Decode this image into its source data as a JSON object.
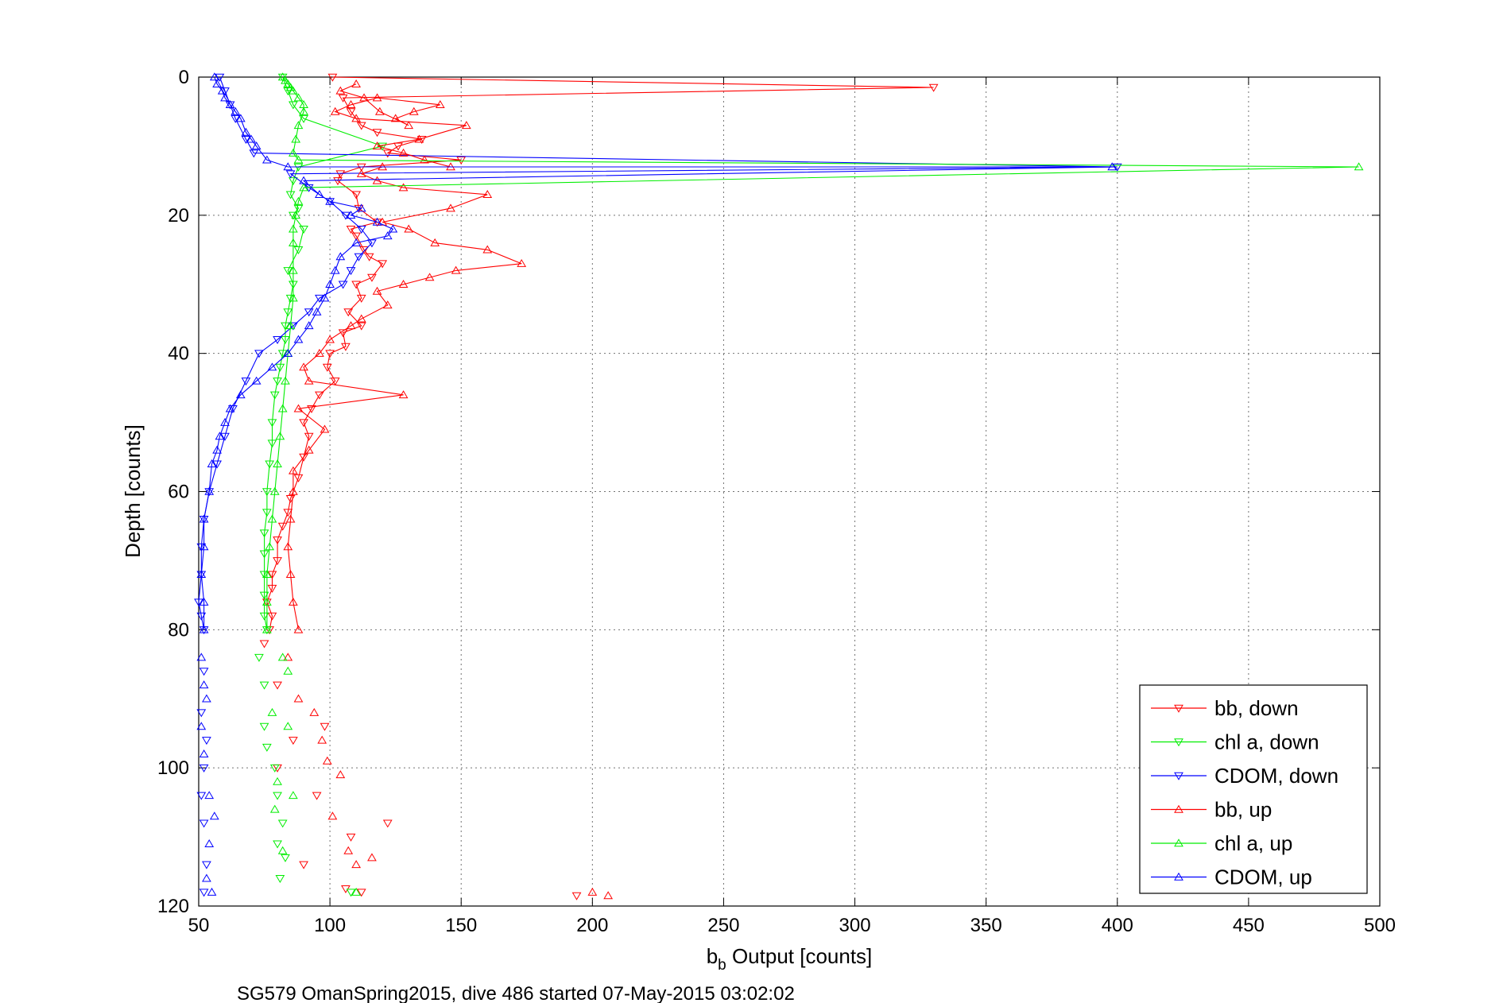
{
  "chart_data": {
    "type": "line",
    "xlabel_main": "b",
    "xlabel_sub": "b",
    "xlabel_rest": " Output [counts]",
    "ylabel": "Depth [counts]",
    "caption": "SG579 OmanSpring2015, dive 486 started 07-May-2015 03:02:02",
    "xlim": [
      50,
      500
    ],
    "ylim": [
      0,
      120
    ],
    "y_reversed": true,
    "xticks": [
      50,
      100,
      150,
      200,
      250,
      300,
      350,
      400,
      450,
      500
    ],
    "yticks": [
      0,
      20,
      40,
      60,
      80,
      100,
      120
    ],
    "grid": true,
    "legend_position": "bottom-right",
    "series": [
      {
        "name": "bb, down",
        "color": "#ff0000",
        "marker": "triangle-down",
        "x": [
          101,
          330,
          105,
          108,
          112,
          118,
          135,
          126,
          122,
          150,
          112,
          104,
          103,
          110,
          111,
          118,
          108,
          110,
          113,
          115,
          120,
          116,
          110,
          112,
          107,
          112,
          105,
          106,
          100,
          99,
          102,
          96,
          93,
          90,
          92,
          90,
          88,
          85,
          84,
          82,
          80,
          80,
          78,
          78,
          76,
          78,
          77
        ],
        "y": [
          0,
          1.5,
          3,
          5,
          7,
          8,
          9,
          10,
          11,
          12,
          13,
          14,
          15,
          17,
          19,
          21,
          22,
          23,
          25,
          26,
          27,
          29,
          30,
          32,
          34,
          36,
          37,
          39,
          40,
          42,
          44,
          46,
          48,
          50,
          52,
          55,
          58,
          61,
          63,
          65,
          67,
          70,
          72,
          74,
          76,
          78,
          80
        ],
        "x_unconnected": [
          75,
          80,
          98,
          86,
          80,
          95,
          122,
          108,
          90,
          194,
          106,
          112
        ],
        "y_unconnected": [
          82,
          88,
          94,
          96,
          100,
          104,
          108,
          110,
          114,
          118.5,
          117.5,
          118
        ]
      },
      {
        "name": "chl a, down",
        "color": "#00ee00",
        "marker": "triangle-down",
        "x": [
          82,
          84,
          86,
          90,
          120,
          88,
          86,
          85,
          88,
          86,
          90,
          88,
          84,
          86,
          85,
          84,
          83,
          83,
          82,
          81,
          80,
          79,
          78,
          78,
          77,
          76,
          76,
          75,
          75,
          75,
          75,
          75,
          76
        ],
        "y": [
          0,
          2,
          4,
          6,
          10,
          13,
          15,
          17,
          19,
          20,
          22,
          25,
          28,
          30,
          32,
          34,
          36,
          38,
          40,
          42,
          44,
          46,
          50,
          53,
          56,
          60,
          63,
          66,
          69,
          72,
          75,
          78,
          80
        ],
        "x_unconnected": [
          73,
          75,
          75,
          76,
          79,
          80,
          82,
          80,
          83,
          81,
          108
        ],
        "y_unconnected": [
          84,
          88,
          94,
          97,
          100,
          104,
          108,
          111,
          113,
          116,
          118
        ]
      },
      {
        "name": "CDOM, down",
        "color": "#0000ff",
        "marker": "triangle-down",
        "x": [
          58,
          60,
          62,
          64,
          68,
          71,
          400,
          85,
          92,
          100,
          106,
          112,
          116,
          111,
          108,
          105,
          96,
          92,
          86,
          80,
          73,
          68,
          63,
          60,
          57,
          54,
          52,
          51,
          51,
          50,
          51,
          52
        ],
        "y": [
          0,
          2,
          4,
          6,
          9,
          11,
          13,
          14,
          16,
          18,
          20,
          22,
          24,
          26,
          28,
          30,
          32,
          34,
          36,
          38,
          40,
          44,
          48,
          52,
          56,
          60,
          64,
          68,
          72,
          76,
          78,
          80
        ],
        "x_unconnected": [
          52,
          51,
          53,
          52,
          51,
          52,
          53,
          52
        ],
        "y_unconnected": [
          86,
          92,
          96,
          100,
          104,
          108,
          114,
          118
        ]
      },
      {
        "name": "bb, up",
        "color": "#ff0000",
        "marker": "triangle-up",
        "x": [
          88,
          86,
          85,
          84,
          85,
          86,
          86,
          92,
          98,
          88,
          128,
          92,
          90,
          96,
          100,
          108,
          112,
          122,
          118,
          128,
          138,
          148,
          173,
          160,
          140,
          130,
          120,
          146,
          160,
          128,
          118,
          112,
          120,
          146,
          136,
          128,
          118,
          134,
          152,
          110,
          102,
          108,
          118,
          142,
          132,
          125,
          130,
          119,
          113,
          104,
          110
        ],
        "y": [
          80,
          76,
          72,
          68,
          64,
          60,
          57,
          54,
          51,
          48,
          46,
          44,
          42,
          40,
          38,
          36,
          35,
          33,
          31,
          30,
          29,
          28,
          27,
          25,
          24,
          22,
          21,
          19,
          17,
          16,
          15,
          14,
          13,
          13,
          12,
          11,
          10,
          9,
          7,
          6,
          5,
          4,
          3,
          4,
          5,
          6,
          7,
          5,
          3,
          2,
          1
        ],
        "x_unconnected": [
          84,
          88,
          94,
          97,
          99,
          104,
          101,
          107,
          110,
          116,
          200,
          206
        ],
        "y_unconnected": [
          84,
          90,
          92,
          96,
          99,
          101,
          107,
          112,
          114,
          113,
          118,
          118.5
        ]
      },
      {
        "name": "chl a, up",
        "color": "#00ee00",
        "marker": "triangle-up",
        "x": [
          76,
          76,
          76,
          77,
          78,
          79,
          80,
          81,
          82,
          83,
          84,
          85,
          86,
          86,
          86,
          86,
          87,
          88,
          90,
          492,
          88,
          86,
          87,
          88,
          90,
          90,
          88,
          86,
          85,
          84,
          83,
          82
        ],
        "y": [
          80,
          76,
          72,
          68,
          64,
          60,
          56,
          52,
          48,
          44,
          40,
          36,
          32,
          28,
          24,
          22,
          20,
          18,
          16,
          13,
          12,
          11,
          9,
          7,
          5,
          4,
          3,
          2,
          1.5,
          1,
          0.5,
          0
        ],
        "x_unconnected": [
          82,
          84,
          78,
          84,
          80,
          86,
          79,
          82,
          110
        ],
        "y_unconnected": [
          84,
          86,
          92,
          94,
          102,
          104,
          106,
          112,
          118
        ]
      },
      {
        "name": "CDOM, up",
        "color": "#0000ff",
        "marker": "triangle-up",
        "x": [
          52,
          52,
          51,
          52,
          52,
          54,
          55,
          57,
          58,
          60,
          62,
          66,
          72,
          78,
          84,
          88,
          92,
          95,
          98,
          100,
          102,
          104,
          110,
          122,
          124,
          118,
          108,
          112,
          100,
          96,
          90,
          398,
          84,
          76,
          72,
          70,
          68,
          66,
          64,
          62,
          60,
          59,
          57,
          56
        ],
        "y": [
          80,
          76,
          72,
          68,
          64,
          60,
          56,
          54,
          52,
          50,
          48,
          46,
          44,
          42,
          40,
          38,
          36,
          34,
          32,
          30,
          28,
          26,
          24,
          23,
          22,
          21,
          20,
          19,
          18,
          17,
          15,
          13,
          13,
          12,
          10,
          9,
          8,
          6,
          5,
          4,
          3,
          2,
          1,
          0
        ],
        "x_unconnected": [
          51,
          52,
          53,
          51,
          52,
          54,
          56,
          54,
          53,
          55
        ],
        "y_unconnected": [
          84,
          88,
          90,
          94,
          98,
          104,
          107,
          111,
          116,
          118
        ]
      }
    ]
  }
}
